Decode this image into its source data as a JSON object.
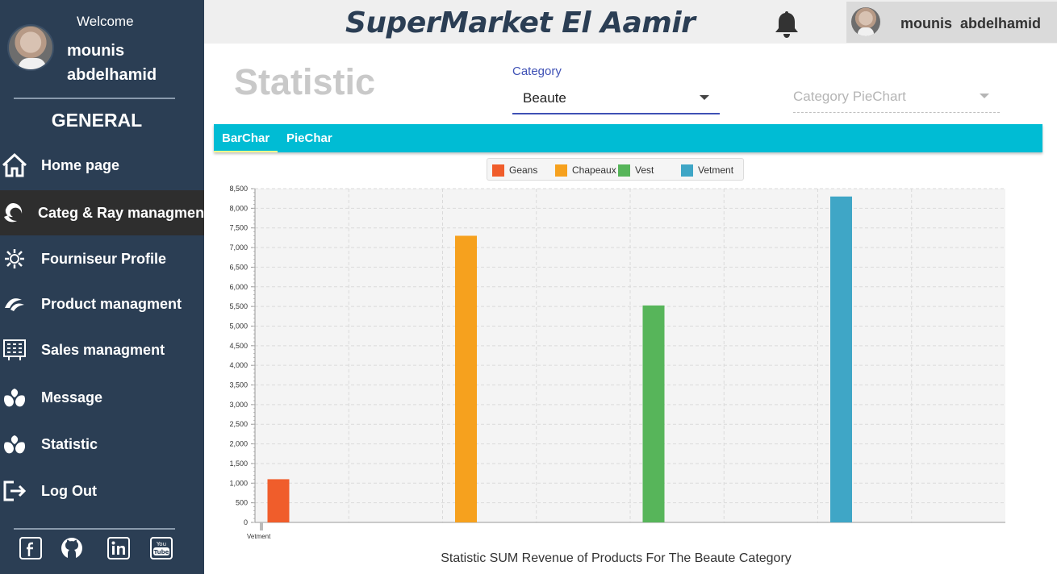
{
  "sidebar": {
    "welcome": "Welcome",
    "user_first": "mounis",
    "user_last": "abdelhamid",
    "section": "GENERAL",
    "items": [
      {
        "label": "Home page",
        "icon": "home-icon"
      },
      {
        "label": "Categ & Ray managment",
        "icon": "category-icon"
      },
      {
        "label": "Fourniseur Profile",
        "icon": "supplier-icon"
      },
      {
        "label": "Product managment",
        "icon": "product-icon"
      },
      {
        "label": "Sales managment",
        "icon": "sales-icon"
      },
      {
        "label": "Message",
        "icon": "message-icon"
      },
      {
        "label": "Statistic",
        "icon": "statistic-icon"
      },
      {
        "label": "Log Out",
        "icon": "logout-icon"
      }
    ],
    "socials": [
      "facebook-icon",
      "github-icon",
      "linkedin-icon",
      "youtube-icon"
    ]
  },
  "header": {
    "brand": "SuperMarket El Aamir",
    "user_chip": "mounis  abdelhamid"
  },
  "content": {
    "page_title": "Statistic",
    "category_label": "Category",
    "category_value": "Beaute",
    "pie_placeholder": "Category PieChart",
    "tabs": [
      "BarChar",
      "PieChar"
    ]
  },
  "colors": {
    "sidebar_bg": "#2b3e54",
    "accent": "#00bcd4",
    "select_underline": "#3f51b5"
  },
  "chart_data": {
    "type": "bar",
    "title": "Statistic SUM Revenue of Products For The Beaute Category",
    "category_label": "Vetment",
    "series": [
      {
        "name": "Geans",
        "value": 1100,
        "color": "#f05d2b"
      },
      {
        "name": "Chapeaux",
        "value": 7300,
        "color": "#f6a11e"
      },
      {
        "name": "Vest",
        "value": 5525,
        "color": "#57b55a"
      },
      {
        "name": "Vetment",
        "value": 8300,
        "color": "#3fa6c6"
      }
    ],
    "ylim": [
      0,
      8500
    ],
    "yticks": [
      "0",
      "500",
      "1,000",
      "1,500",
      "2,000",
      "2,500",
      "3,000",
      "3,500",
      "4,000",
      "4,500",
      "5,000",
      "5,500",
      "6,000",
      "6,500",
      "7,000",
      "7,500",
      "8,000",
      "8,500"
    ],
    "grid": true,
    "legend": "top-center"
  }
}
